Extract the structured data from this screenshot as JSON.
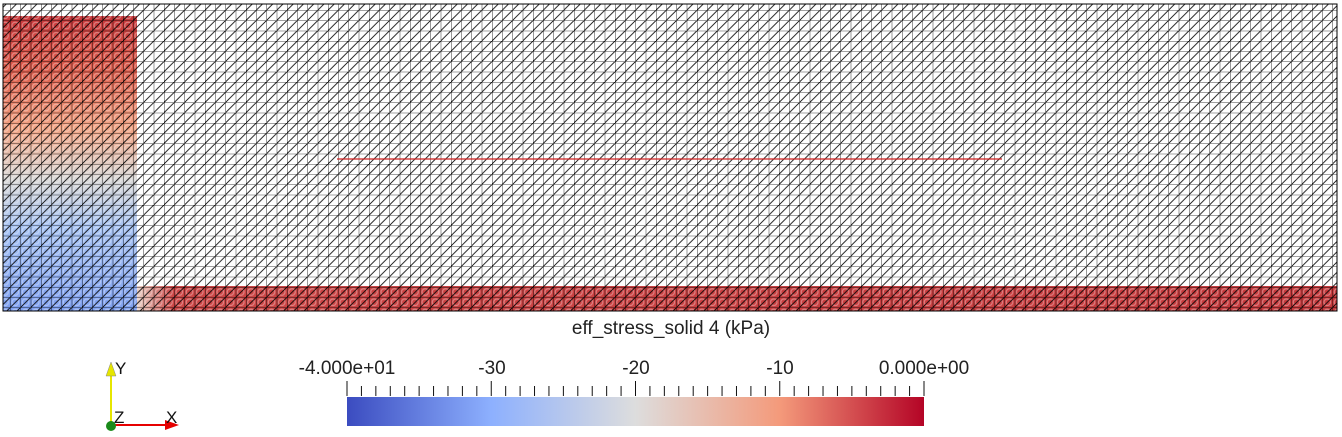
{
  "colorbar": {
    "title": "eff_stress_solid 4 (kPa)",
    "range": [
      -40,
      0
    ],
    "tick_labels": [
      "-4.000e+01",
      "-30",
      "-20",
      "-10",
      "0.000e+00"
    ],
    "tick_values": [
      -40,
      -30,
      -20,
      -10,
      0
    ],
    "colormap": [
      "#3b4cc0",
      "#8db0fe",
      "#dddddd",
      "#f49a7b",
      "#b40426"
    ]
  },
  "axes_triad": {
    "y_label": "Y",
    "z_label": "Z",
    "x_label": "X",
    "y_color": "#e6e600",
    "x_color": "#e60000",
    "z_color": "#1a8a1a"
  },
  "mesh": {
    "line_color": "#000000",
    "interface_line_color": "#d02020"
  }
}
